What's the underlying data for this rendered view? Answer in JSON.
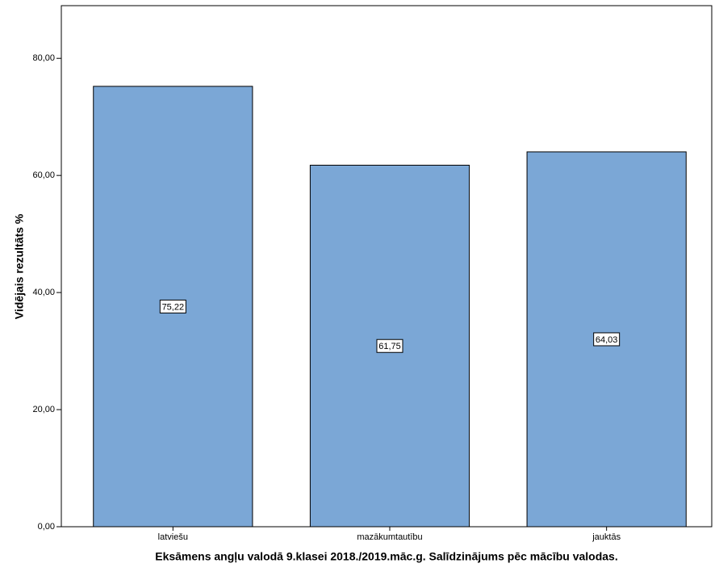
{
  "chart_data": {
    "type": "bar",
    "xlabel": "Eksāmens angļu valodā 9.klasei 2018./2019.māc.g. Salīdzinājums pēc mācību valodas.",
    "ylabel": "Vidējais rezultāts %",
    "categories": [
      "latviešu",
      "mazākumtautību",
      "jauktās"
    ],
    "values": [
      75.22,
      61.75,
      64.03
    ],
    "value_labels": [
      "75,22",
      "61,75",
      "64,03"
    ],
    "color": "#7ba7d6",
    "ylim": [
      0,
      89
    ],
    "yticks": [
      {
        "value": 0,
        "label": "0,00"
      },
      {
        "value": 20,
        "label": "20,00"
      },
      {
        "value": 40,
        "label": "40,00"
      },
      {
        "value": 60,
        "label": "60,00"
      },
      {
        "value": 80,
        "label": "80,00"
      }
    ]
  }
}
